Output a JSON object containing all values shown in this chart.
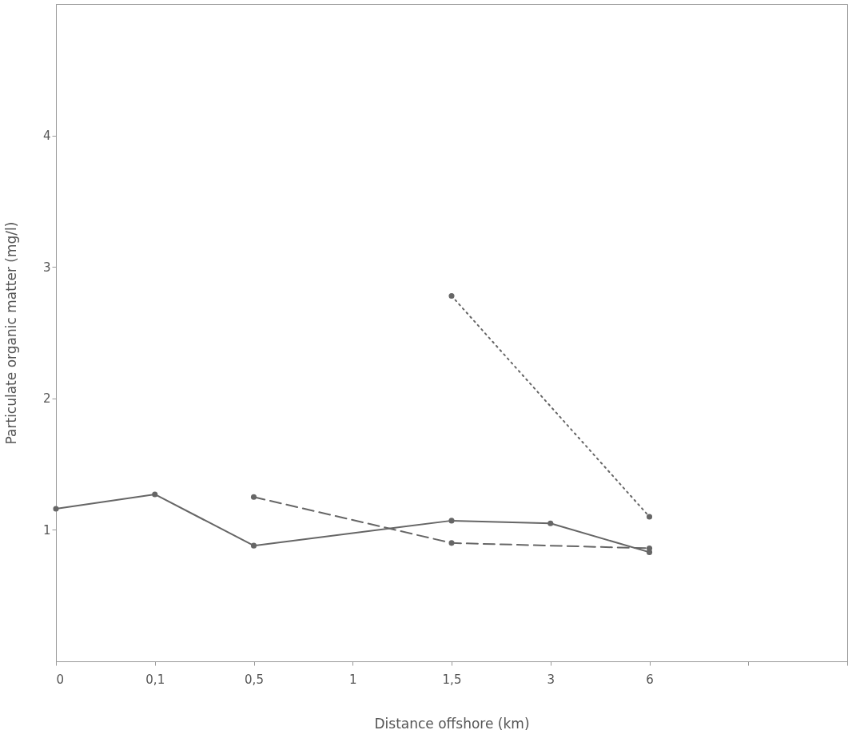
{
  "chart_data": {
    "type": "line",
    "xlabel": "Distance offshore (km)",
    "ylabel": "Particulate organic matter (mg/l)",
    "categories": [
      "0",
      "0,1",
      "0,5",
      "1",
      "1,5",
      "3",
      "6",
      null,
      null
    ],
    "series": [
      {
        "color": "#666666",
        "line_style": "solid",
        "values": [
          1.16,
          1.27,
          0.88,
          null,
          1.07,
          1.05,
          0.83,
          null,
          null
        ]
      },
      {
        "color": "#666666",
        "line_style": "dashed",
        "values": [
          null,
          null,
          1.25,
          null,
          0.9,
          null,
          0.86,
          null,
          null
        ]
      },
      {
        "color": "#666666",
        "line_style": "dotted",
        "values": [
          null,
          null,
          null,
          null,
          2.78,
          null,
          1.1,
          null,
          null
        ]
      }
    ],
    "ylim": [
      0,
      5
    ],
    "yticks": [
      1,
      2,
      3,
      4
    ],
    "marker": "circle",
    "grid": false
  }
}
